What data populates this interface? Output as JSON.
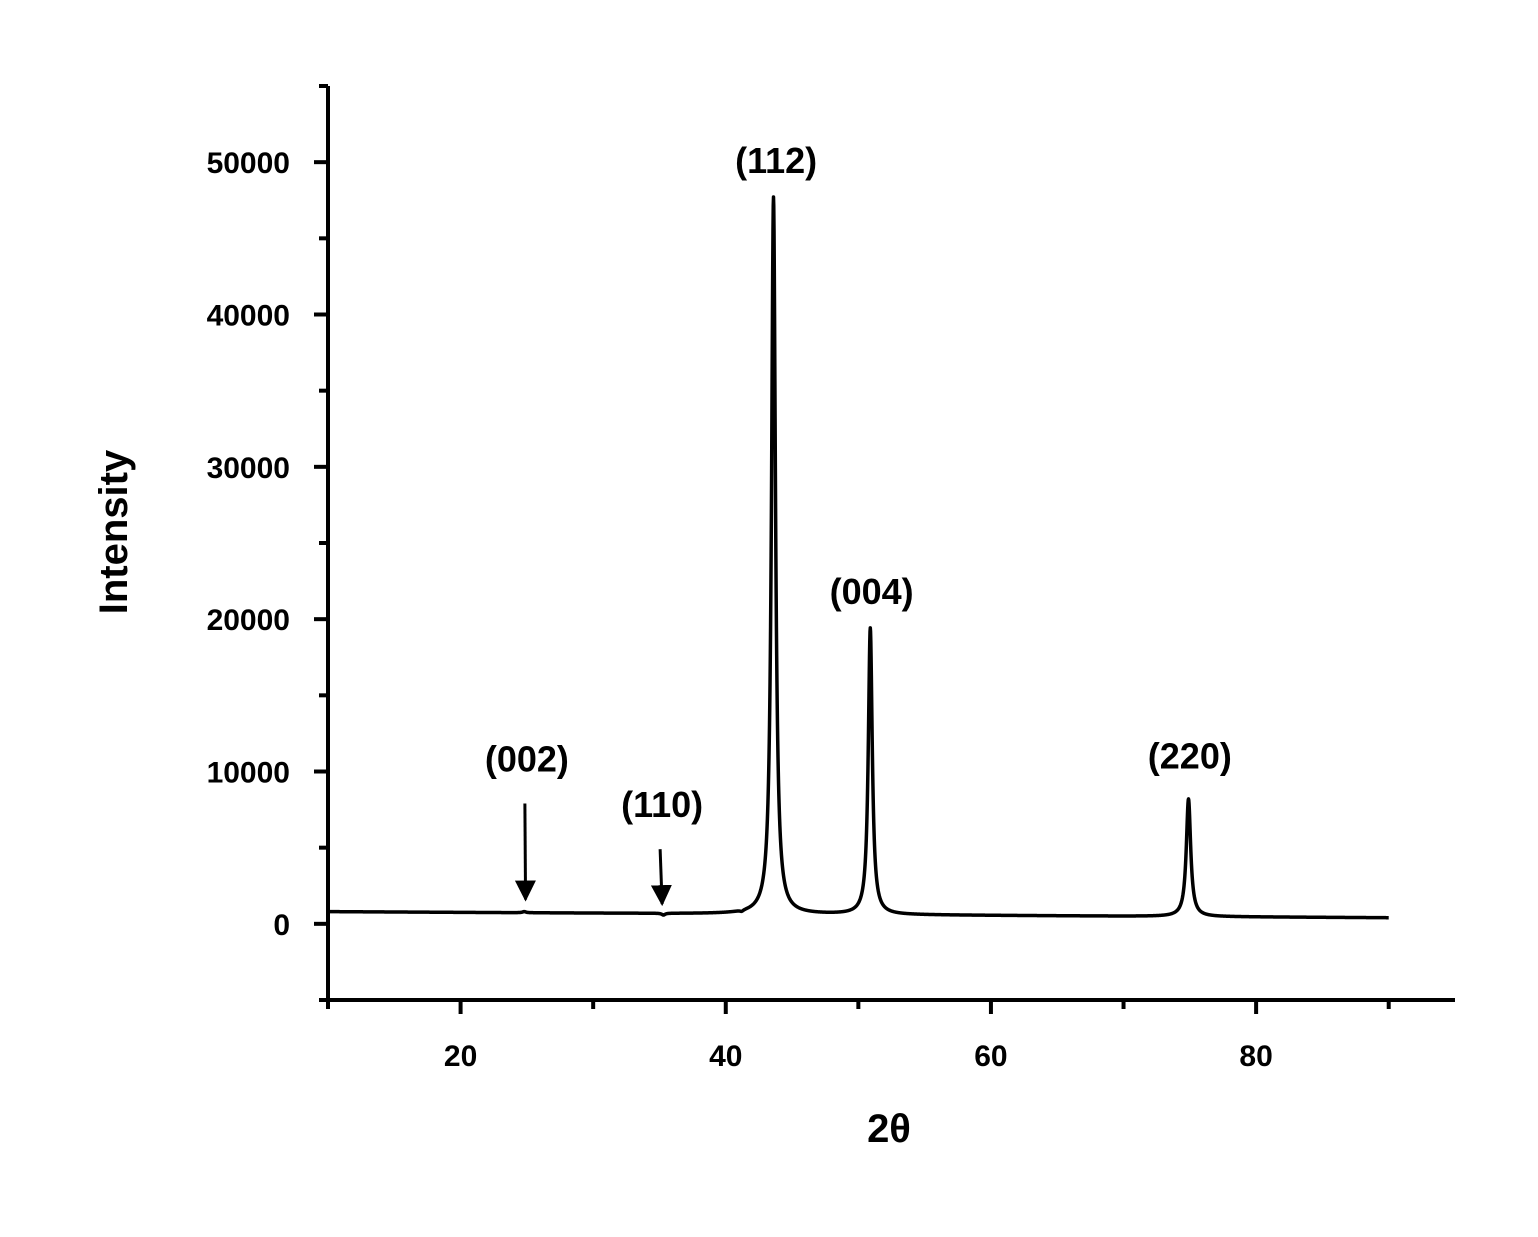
{
  "chart_data": {
    "type": "line",
    "title": "",
    "xlabel": "2θ",
    "ylabel": "Intensity",
    "xlim": [
      10,
      95
    ],
    "ylim": [
      -5000,
      55000
    ],
    "x_ticks": [
      20,
      40,
      60,
      80
    ],
    "x_minor_ticks": [
      10,
      30,
      50,
      70,
      90
    ],
    "y_ticks": [
      0,
      10000,
      20000,
      30000,
      40000,
      50000
    ],
    "y_minor_ticks": [
      -5000,
      5000,
      15000,
      25000,
      35000,
      45000,
      55000
    ],
    "grid": false,
    "legend": "none",
    "series": [
      {
        "color": "#000000",
        "baseline": {
          "x_start": 10,
          "y_start": 800,
          "x_end": 90,
          "y_end": 400
        },
        "peaks": [
          {
            "x": 24.8,
            "y": 800,
            "width": 0.15
          },
          {
            "x": 35.3,
            "y": 550,
            "width": 0.15
          },
          {
            "x": 41.2,
            "y": 550,
            "width": 0.15
          },
          {
            "x": 43.6,
            "y": 47700,
            "width": 0.18
          },
          {
            "x": 50.9,
            "y": 19400,
            "width": 0.18
          },
          {
            "x": 74.9,
            "y": 8200,
            "width": 0.2
          }
        ]
      }
    ],
    "annotations": [
      {
        "text": "(002)",
        "x": 25.0,
        "y": 10000,
        "arrow_to": {
          "x": 24.9,
          "y": 1600
        }
      },
      {
        "text": "(110)",
        "x": 35.2,
        "y": 7000,
        "arrow_to": {
          "x": 35.2,
          "y": 1300
        }
      },
      {
        "text": "(112)",
        "x": 43.8,
        "y": 49300
      },
      {
        "text": "(004)",
        "x": 51.0,
        "y": 21000
      },
      {
        "text": "(220)",
        "x": 75.0,
        "y": 10200
      }
    ]
  }
}
